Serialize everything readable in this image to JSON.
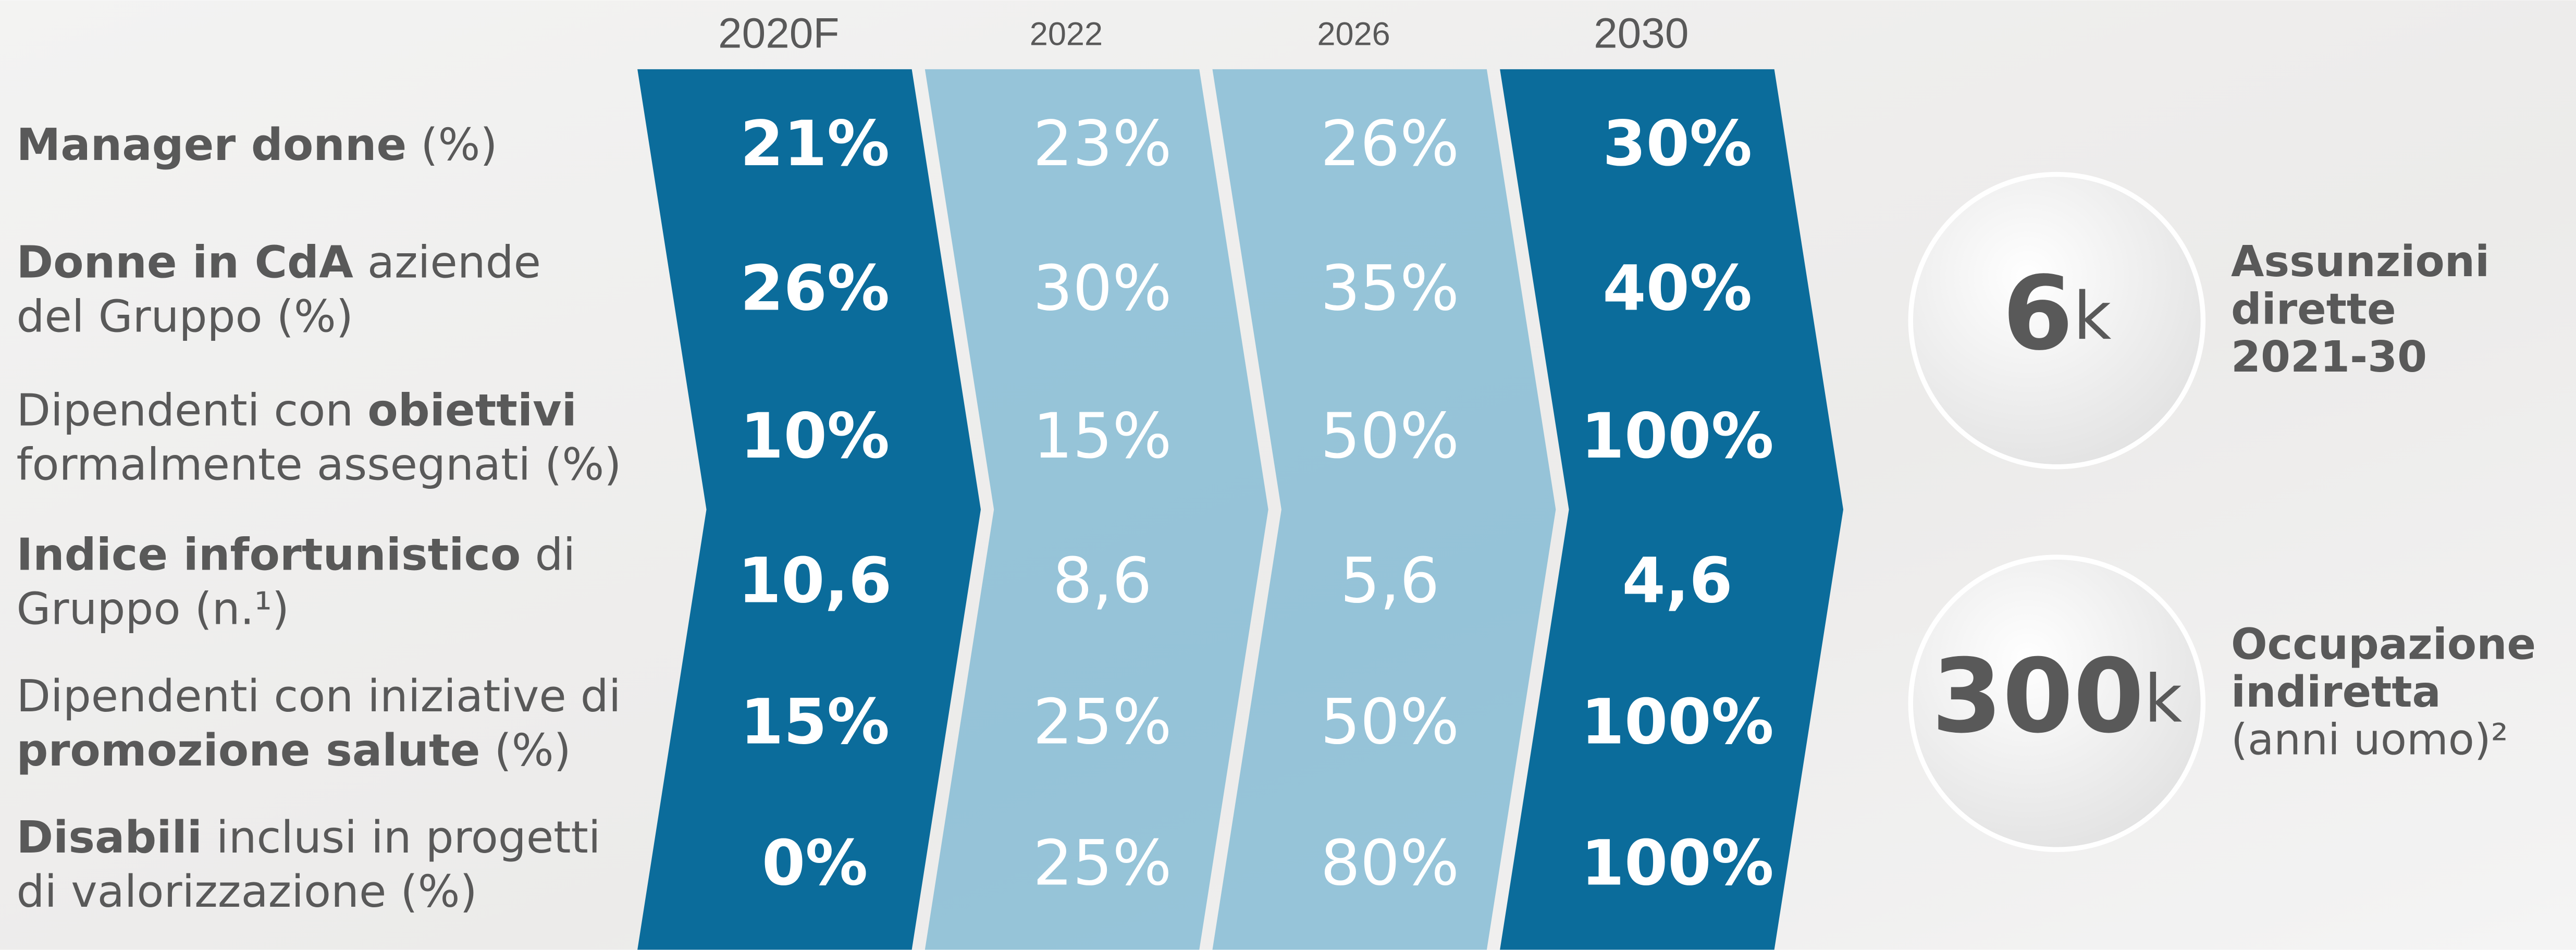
{
  "columns": [
    {
      "label": "2020F",
      "color": "#0b6c9b",
      "bold": true
    },
    {
      "label": "2022",
      "color": "#86bcd5",
      "bold": false
    },
    {
      "label": "2026",
      "color": "#86bcd5",
      "bold": false
    },
    {
      "label": "2030",
      "color": "#0b6c9b",
      "bold": true
    }
  ],
  "rows": [
    {
      "label": [
        [
          {
            "text": "Manager donne",
            "bold": true
          },
          {
            "text": " (%)"
          }
        ]
      ],
      "values": [
        "21%",
        "23%",
        "26%",
        "30%"
      ]
    },
    {
      "label": [
        [
          {
            "text": "Donne in CdA",
            "bold": true
          },
          {
            "text": " aziende"
          }
        ],
        [
          {
            "text": "del Gruppo (%)"
          }
        ]
      ],
      "values": [
        "26%",
        "30%",
        "35%",
        "40%"
      ]
    },
    {
      "label": [
        [
          {
            "text": "Dipendenti con "
          },
          {
            "text": "obiettivi",
            "bold": true
          }
        ],
        [
          {
            "text": "formalmente assegnati (%)"
          }
        ]
      ],
      "values": [
        "10%",
        "15%",
        "50%",
        "100%"
      ]
    },
    {
      "label": [
        [
          {
            "text": "Indice infortunistico",
            "bold": true
          },
          {
            "text": " di"
          }
        ],
        [
          {
            "text": "Gruppo (n.¹)"
          }
        ]
      ],
      "values": [
        "10,6",
        "8,6",
        "5,6",
        "4,6"
      ]
    },
    {
      "label": [
        [
          {
            "text": "Dipendenti con iniziative di"
          }
        ],
        [
          {
            "text": "promozione salute",
            "bold": true
          },
          {
            "text": " (%)"
          }
        ]
      ],
      "values": [
        "15%",
        "25%",
        "50%",
        "100%"
      ]
    },
    {
      "label": [
        [
          {
            "text": "Disabili",
            "bold": true
          },
          {
            "text": " inclusi in progetti"
          }
        ],
        [
          {
            "text": "di valorizzazione (%)"
          }
        ]
      ],
      "values": [
        "0%",
        "25%",
        "80%",
        "100%"
      ]
    }
  ],
  "stats": [
    {
      "value": "6",
      "unit": "k",
      "label": [
        [
          {
            "text": "Assunzioni",
            "bold": true
          }
        ],
        [
          {
            "text": "dirette",
            "bold": true
          }
        ],
        [
          {
            "text": "2021-30",
            "bold": true
          }
        ]
      ]
    },
    {
      "value": "300",
      "unit": "k",
      "label": [
        [
          {
            "text": "Occupazione",
            "bold": true
          }
        ],
        [
          {
            "text": "indiretta",
            "bold": true
          }
        ],
        [
          {
            "text": "(anni uomo)²"
          }
        ]
      ]
    }
  ]
}
